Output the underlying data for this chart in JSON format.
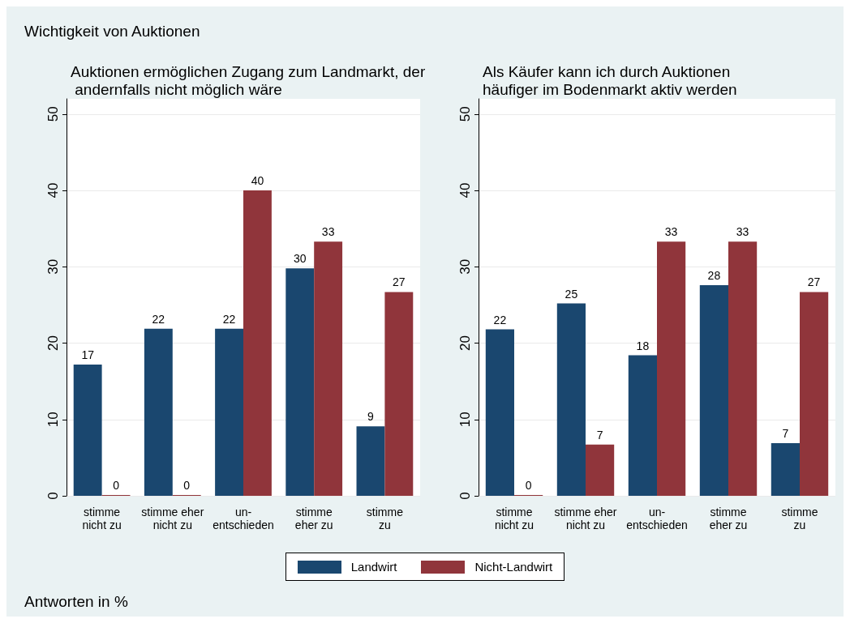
{
  "chart_data": [
    {
      "type": "bar",
      "title": "Auktionen ermöglichen Zugang zum Landmarkt, der andernfalls nicht möglich wäre",
      "categories": [
        "stimme\nnicht zu",
        "stimme eher\nnicht zu",
        "un-\nentschieden",
        "stimme\neher zu",
        "stimme\nzu"
      ],
      "series": [
        {
          "name": "Landwirt",
          "color": "#1a476f",
          "values": [
            17.2,
            21.9,
            21.9,
            29.8,
            9.1
          ],
          "value_labels": [
            "17",
            "22",
            "22",
            "30",
            "9"
          ]
        },
        {
          "name": "Nicht-Landwirt",
          "color": "#90353b",
          "values": [
            0,
            0,
            40,
            33.3,
            26.7
          ],
          "value_labels": [
            "0",
            "0",
            "40",
            "33",
            "27"
          ]
        }
      ],
      "ylim": [
        0,
        52
      ],
      "yticks": [
        0,
        10,
        20,
        30,
        40,
        50
      ],
      "grid": "y",
      "legend": "bottom",
      "annotations": [
        "Wichtigkeit von Auktionen",
        "Antworten in %"
      ]
    },
    {
      "type": "bar",
      "title": "Als Käufer kann ich durch Auktionen häufiger im Bodenmarkt aktiv werden",
      "categories": [
        "stimme\nnicht zu",
        "stimme eher\nnicht zu",
        "un-\nentschieden",
        "stimme\neher zu",
        "stimme\nzu"
      ],
      "series": [
        {
          "color": "#1a476f",
          "values": [
            21.8,
            25.2,
            18.4,
            27.6,
            6.9
          ],
          "value_labels": [
            "22",
            "25",
            "18",
            "28",
            "7"
          ]
        },
        {
          "color": "#90353b",
          "values": [
            0,
            6.7,
            33.3,
            33.3,
            26.7
          ],
          "value_labels": [
            "0",
            "7",
            "33",
            "33",
            "27"
          ]
        }
      ],
      "ylim": [
        0,
        52
      ],
      "yticks": [
        0,
        10,
        20,
        30,
        40,
        50
      ],
      "grid": "y"
    }
  ]
}
